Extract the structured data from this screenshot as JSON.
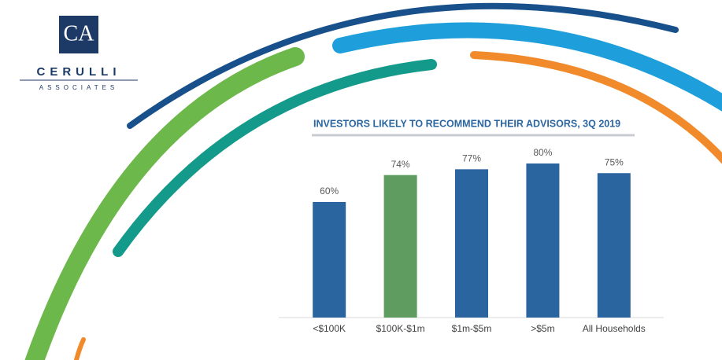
{
  "logo": {
    "mark": "CA",
    "name": "CERULLI",
    "subtitle": "ASSOCIATES"
  },
  "chart_data": {
    "type": "bar",
    "title": "INVESTORS LIKELY TO RECOMMEND THEIR ADVISORS, 3Q 2019",
    "categories": [
      "<$100K",
      "$100K-$1m",
      "$1m-$5m",
      ">$5m",
      "All Households"
    ],
    "values": [
      60,
      74,
      77,
      80,
      75
    ],
    "value_labels": [
      "60%",
      "74%",
      "77%",
      "80%",
      "75%"
    ],
    "colors": [
      "#2a65a0",
      "#5e9d5f",
      "#2a65a0",
      "#2a65a0",
      "#2a65a0"
    ],
    "ylim": [
      0,
      100
    ]
  }
}
